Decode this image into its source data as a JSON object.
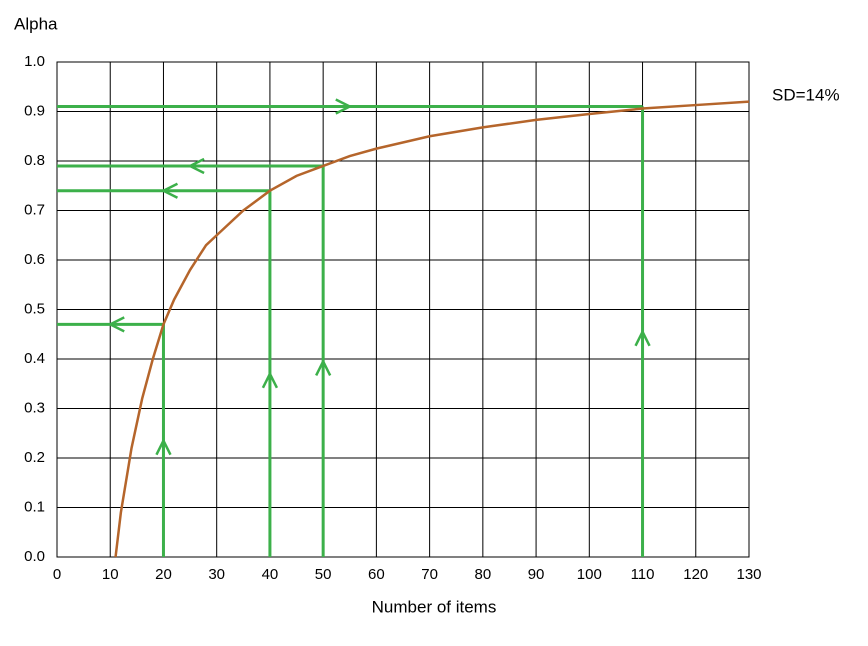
{
  "chart_data": {
    "type": "line",
    "y_label": "Alpha",
    "x_label": "Number of items",
    "annotation": "SD=14%",
    "xlim": [
      0,
      130
    ],
    "xticks": [
      0,
      10,
      20,
      30,
      40,
      50,
      60,
      70,
      80,
      90,
      100,
      110,
      120,
      130
    ],
    "ylim": [
      0,
      1
    ],
    "yticks": [
      {
        "value": 0,
        "label": "0.0"
      },
      0.1,
      0.2,
      0.3,
      0.4,
      0.5,
      0.6,
      0.7,
      0.8,
      0.9,
      {
        "value": 1,
        "label": "1.0"
      }
    ],
    "grid": true,
    "series": [
      {
        "color": "#b5652b",
        "x": [
          11,
          12,
          14,
          16,
          18,
          20,
          22,
          25,
          28,
          30,
          35,
          40,
          45,
          50,
          55,
          60,
          70,
          80,
          90,
          100,
          110,
          120,
          130
        ],
        "values": [
          0,
          0.09,
          0.22,
          0.32,
          0.4,
          0.47,
          0.52,
          0.58,
          0.63,
          0.65,
          0.7,
          0.74,
          0.77,
          0.79,
          0.81,
          0.825,
          0.85,
          0.868,
          0.883,
          0.895,
          0.906,
          0.913,
          0.92
        ]
      },
      {
        "color": "#3cb04a",
        "x": [
          20,
          20,
          0
        ],
        "values": [
          0,
          0.47,
          0.47
        ]
      },
      {
        "color": "#3cb04a",
        "x": [
          40,
          40,
          0
        ],
        "values": [
          0,
          0.74,
          0.74
        ]
      },
      {
        "color": "#3cb04a",
        "x": [
          50,
          50,
          0
        ],
        "values": [
          0,
          0.79,
          0.79
        ]
      },
      {
        "color": "#3cb04a",
        "x": [
          110,
          110
        ],
        "values": [
          0,
          0.91
        ]
      },
      {
        "color": "#3cb04a",
        "x": [
          0,
          110
        ],
        "values": [
          0.91,
          0.91
        ]
      }
    ]
  }
}
